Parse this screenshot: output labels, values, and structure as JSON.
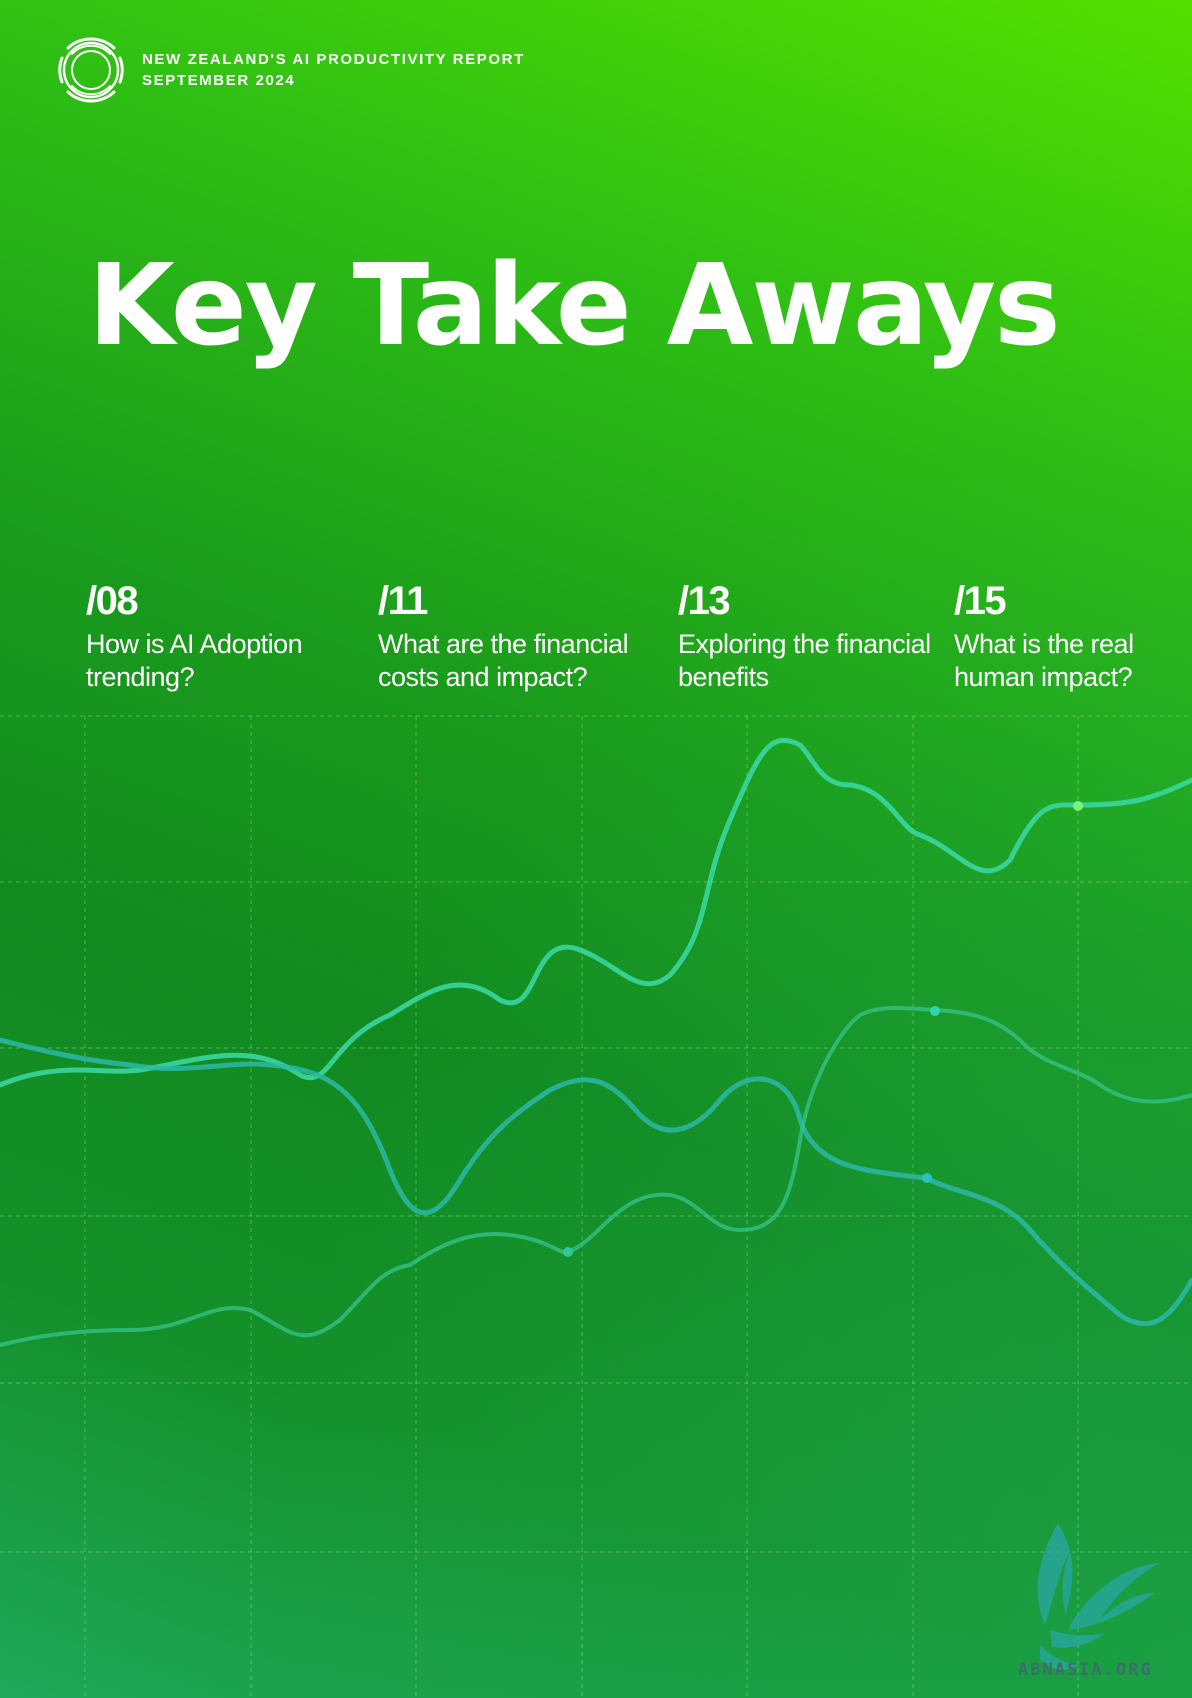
{
  "header": {
    "report_name": "NEW ZEALAND'S AI PRODUCTIVITY REPORT",
    "date": "SEPTEMBER 2024",
    "logo_icon": "concentric-rings-icon"
  },
  "title": "Key Take Aways",
  "sections": [
    {
      "number": "/08",
      "label_line1": "How is AI Adoption",
      "label_line2": "trending?"
    },
    {
      "number": "/11",
      "label_line1": "What are the financial",
      "label_line2": "costs and impact?"
    },
    {
      "number": "/13",
      "label_line1": "Exploring the financial",
      "label_line2": "benefits"
    },
    {
      "number": "/15",
      "label_line1": "What is the real",
      "label_line2": "human impact?"
    }
  ],
  "decoration": {
    "line_colors": [
      "#3fdcaa",
      "#2ec9b0",
      "#22b6c8",
      "#4fe08a"
    ],
    "grid_color": "#9fe08f"
  },
  "watermark": {
    "text": "ABNASIA.ORG",
    "icon": "feather-bird-icon"
  }
}
